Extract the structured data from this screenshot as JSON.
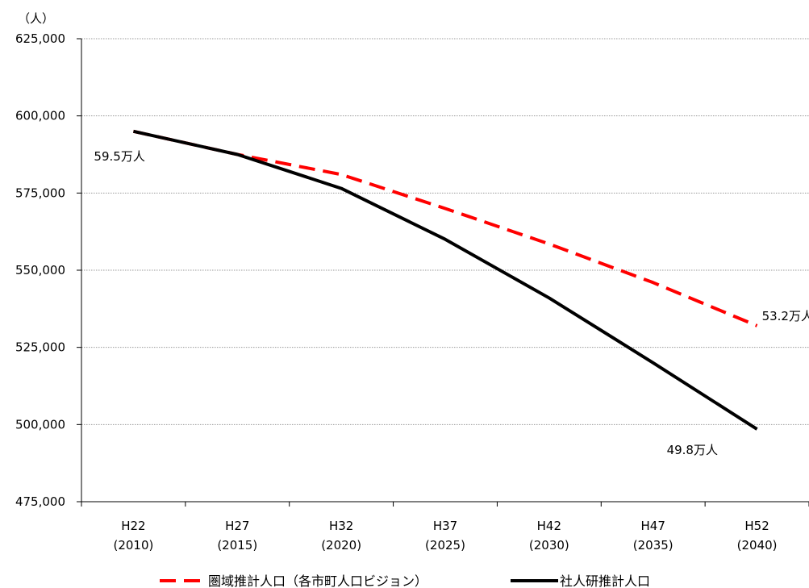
{
  "chart_data": {
    "type": "line",
    "yunit": "（人）",
    "ylim": [
      475000,
      625000
    ],
    "yticks": [
      475000,
      500000,
      525000,
      550000,
      575000,
      600000,
      625000
    ],
    "ytick_labels": [
      "475,000",
      "500,000",
      "525,000",
      "550,000",
      "575,000",
      "600,000",
      "625,000"
    ],
    "grid": "horizontal-dotted",
    "categories": [
      {
        "era": "H22",
        "year": "(2010)"
      },
      {
        "era": "H27",
        "year": "(2015)"
      },
      {
        "era": "H32",
        "year": "(2020)"
      },
      {
        "era": "H37",
        "year": "(2025)"
      },
      {
        "era": "H42",
        "year": "(2030)"
      },
      {
        "era": "H47",
        "year": "(2035)"
      },
      {
        "era": "H52",
        "year": "(2040)"
      }
    ],
    "series": [
      {
        "name": "圏域推計人口（各市町人口ビジョン）",
        "color": "#ff0000",
        "style": "dashed",
        "values": [
          595000,
          587500,
          581000,
          570000,
          558500,
          546000,
          532000
        ]
      },
      {
        "name": "社人研推計人口",
        "color": "#000000",
        "style": "solid",
        "values": [
          595000,
          587500,
          576500,
          560000,
          541000,
          520000,
          498500
        ]
      }
    ],
    "annotations": [
      {
        "text": "59.5万人",
        "series": 1,
        "index": 0
      },
      {
        "text": "53.2万人",
        "series": 0,
        "index": 6
      },
      {
        "text": "49.8万人",
        "series": 1,
        "index": 6
      }
    ],
    "legend_position": "bottom"
  }
}
